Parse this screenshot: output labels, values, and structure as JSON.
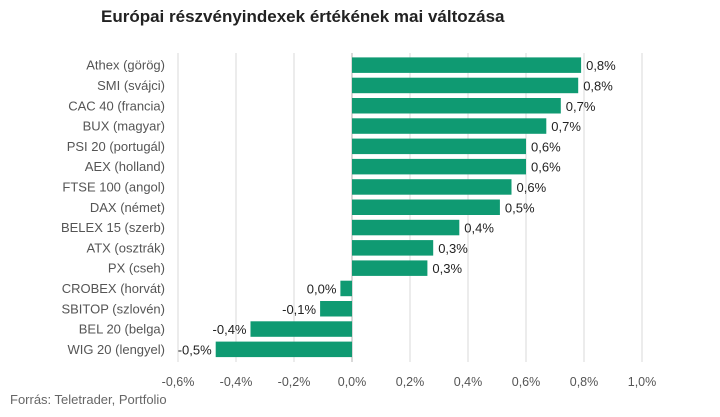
{
  "page": {
    "title": "Európai részvényindexek értékének mai változása",
    "source": "Forrás: Teletrader, Portfolio"
  },
  "colors": {
    "bar": "#0f9a72",
    "grid": "#d9d9d9",
    "zero_line": "#b3b3b3",
    "text": "#555555",
    "value_text": "#222222"
  },
  "chart_data": {
    "type": "bar",
    "orientation": "horizontal",
    "title": "Európai részvényindexek értékének mai változása",
    "xlabel": "",
    "ylabel": "",
    "xlim": [
      -0.6,
      1.0
    ],
    "grid": true,
    "tick_values": [
      -0.6,
      -0.4,
      -0.2,
      0.0,
      0.2,
      0.4,
      0.6,
      0.8,
      1.0
    ],
    "tick_labels": [
      "-0,6%",
      "-0,4%",
      "-0,2%",
      "0,0%",
      "0,2%",
      "0,4%",
      "0,6%",
      "0,8%",
      "1,0%"
    ],
    "categories": [
      "Athex (görög)",
      "SMI (svájci)",
      "CAC 40 (francia)",
      "BUX (magyar)",
      "PSI 20 (portugál)",
      "AEX (holland)",
      "FTSE 100 (angol)",
      "DAX (német)",
      "BELEX 15 (szerb)",
      "ATX (osztrák)",
      "PX (cseh)",
      "CROBEX (horvát)",
      "SBITOP (szlovén)",
      "BEL 20 (belga)",
      "WIG 20 (lengyel)"
    ],
    "values": [
      0.79,
      0.78,
      0.72,
      0.67,
      0.6,
      0.6,
      0.55,
      0.51,
      0.37,
      0.28,
      0.26,
      -0.04,
      -0.11,
      -0.35,
      -0.47
    ],
    "value_labels": [
      "0,8%",
      "0,8%",
      "0,7%",
      "0,7%",
      "0,6%",
      "0,6%",
      "0,6%",
      "0,5%",
      "0,4%",
      "0,3%",
      "0,3%",
      "0,0%",
      "-0,1%",
      "-0,4%",
      "-0,5%"
    ]
  }
}
